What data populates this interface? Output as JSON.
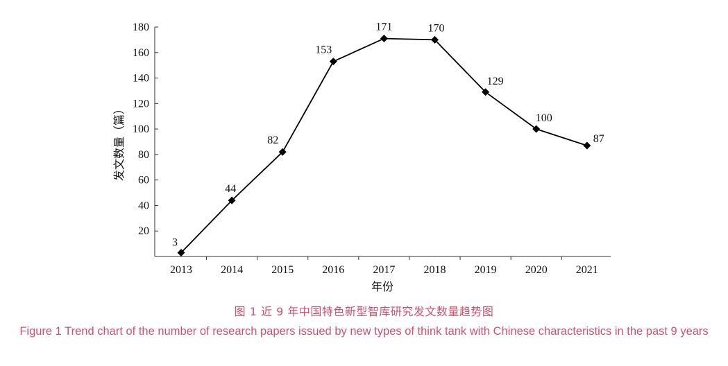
{
  "chart_data": {
    "type": "line",
    "x": [
      "2013",
      "2014",
      "2015",
      "2016",
      "2017",
      "2018",
      "2019",
      "2020",
      "2021"
    ],
    "values": [
      3,
      44,
      82,
      153,
      171,
      170,
      129,
      100,
      87
    ],
    "yticks": [
      20,
      40,
      60,
      80,
      100,
      120,
      140,
      160,
      180
    ],
    "ylim": [
      0,
      180
    ],
    "xlabel": "年份",
    "ylabel": "发文数量（篇）",
    "grid": false,
    "marker": "diamond",
    "line_color": "#000000"
  },
  "caption": {
    "cn": "图 1  近 9 年中国特色新型智库研究发文数量趋势图",
    "en": "Figure 1  Trend chart of the number of research papers issued by new types of think tank with Chinese characteristics in the past 9 years",
    "color": "#d0506e"
  }
}
